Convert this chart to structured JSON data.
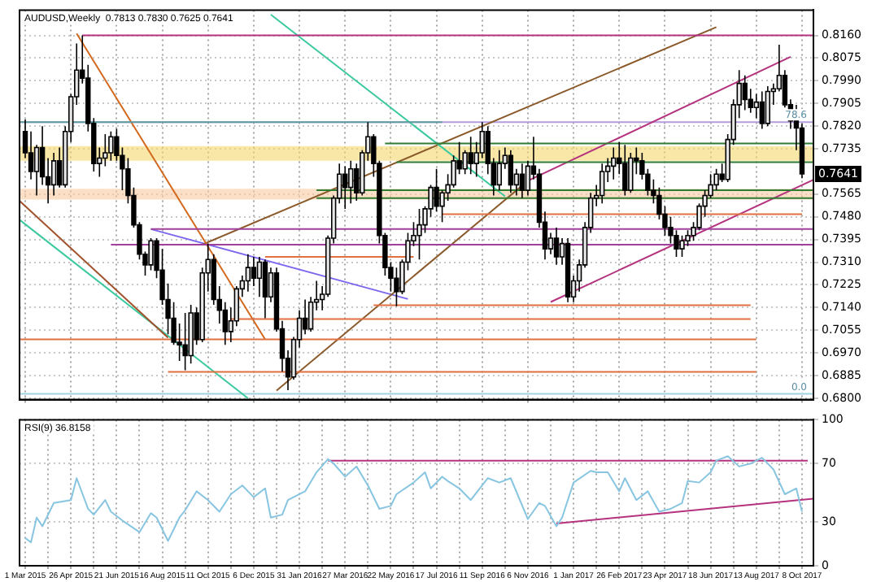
{
  "chart_data": [
    {
      "type": "candlestick",
      "title": "AUDUSD,Weekly  0.7813 0.7830 0.7625 0.7641",
      "grid": true,
      "tick_labels": "y",
      "x": [
        "2015-03-01",
        "2015-03-08",
        "2015-03-15",
        "2015-03-22",
        "2015-03-29",
        "2015-04-05",
        "2015-04-12",
        "2015-04-19",
        "2015-04-26",
        "2015-05-03",
        "2015-05-10",
        "2015-05-17",
        "2015-05-24",
        "2015-05-31",
        "2015-06-07",
        "2015-06-14",
        "2015-06-21",
        "2015-06-28",
        "2015-07-05",
        "2015-07-12",
        "2015-07-19",
        "2015-07-26",
        "2015-08-02",
        "2015-08-09",
        "2015-08-16",
        "2015-08-23",
        "2015-08-30",
        "2015-09-06",
        "2015-09-13",
        "2015-09-20",
        "2015-09-27",
        "2015-10-04",
        "2015-10-11",
        "2015-10-18",
        "2015-10-25",
        "2015-11-01",
        "2015-11-08",
        "2015-11-15",
        "2015-11-22",
        "2015-11-29",
        "2015-12-06",
        "2015-12-13",
        "2015-12-20",
        "2015-12-27",
        "2016-01-03",
        "2016-01-10",
        "2016-01-17",
        "2016-01-24",
        "2016-01-31",
        "2016-02-07",
        "2016-02-14",
        "2016-02-21",
        "2016-02-28",
        "2016-03-06",
        "2016-03-13",
        "2016-03-20",
        "2016-03-27",
        "2016-04-03",
        "2016-04-10",
        "2016-04-17",
        "2016-04-24",
        "2016-05-01",
        "2016-05-08",
        "2016-05-15",
        "2016-05-22",
        "2016-05-29",
        "2016-06-05",
        "2016-06-12",
        "2016-06-19",
        "2016-06-26",
        "2016-07-03",
        "2016-07-10",
        "2016-07-17",
        "2016-07-24",
        "2016-07-31",
        "2016-08-07",
        "2016-08-14",
        "2016-08-21",
        "2016-08-28",
        "2016-09-04",
        "2016-09-11",
        "2016-09-18",
        "2016-09-25",
        "2016-10-02",
        "2016-10-09",
        "2016-10-16",
        "2016-10-23",
        "2016-10-30",
        "2016-11-06",
        "2016-11-13",
        "2016-11-20",
        "2016-11-27",
        "2016-12-04",
        "2016-12-11",
        "2016-12-18",
        "2016-12-25",
        "2017-01-01",
        "2017-01-08",
        "2017-01-15",
        "2017-01-22",
        "2017-01-29",
        "2017-02-05",
        "2017-02-12",
        "2017-02-19",
        "2017-02-26",
        "2017-03-05",
        "2017-03-12",
        "2017-03-19",
        "2017-03-26",
        "2017-04-02",
        "2017-04-09",
        "2017-04-16",
        "2017-04-23",
        "2017-04-30",
        "2017-05-07",
        "2017-05-14",
        "2017-05-21",
        "2017-05-28",
        "2017-06-04",
        "2017-06-11",
        "2017-06-18",
        "2017-06-25",
        "2017-07-02",
        "2017-07-09",
        "2017-07-16",
        "2017-07-23",
        "2017-07-30",
        "2017-08-06",
        "2017-08-13",
        "2017-08-20",
        "2017-08-27",
        "2017-09-03",
        "2017-09-10",
        "2017-09-17",
        "2017-09-24",
        "2017-10-01",
        "2017-10-08"
      ],
      "ohlc": [
        [
          0.78,
          0.7845,
          0.77,
          0.772
        ],
        [
          0.772,
          0.78,
          0.762,
          0.765
        ],
        [
          0.765,
          0.775,
          0.756,
          0.774
        ],
        [
          0.774,
          0.782,
          0.76,
          0.763
        ],
        [
          0.763,
          0.77,
          0.753,
          0.76
        ],
        [
          0.76,
          0.772,
          0.756,
          0.769
        ],
        [
          0.769,
          0.774,
          0.759,
          0.76
        ],
        [
          0.76,
          0.782,
          0.759,
          0.78
        ],
        [
          0.78,
          0.794,
          0.776,
          0.793
        ],
        [
          0.793,
          0.813,
          0.79,
          0.803
        ],
        [
          0.803,
          0.816,
          0.798,
          0.8
        ],
        [
          0.8,
          0.805,
          0.78,
          0.783
        ],
        [
          0.783,
          0.785,
          0.765,
          0.768
        ],
        [
          0.768,
          0.774,
          0.763,
          0.77
        ],
        [
          0.77,
          0.779,
          0.767,
          0.772
        ],
        [
          0.772,
          0.78,
          0.769,
          0.778
        ],
        [
          0.778,
          0.781,
          0.769,
          0.771
        ],
        [
          0.771,
          0.774,
          0.758,
          0.766
        ],
        [
          0.766,
          0.77,
          0.753,
          0.756
        ],
        [
          0.756,
          0.759,
          0.744,
          0.745
        ],
        [
          0.745,
          0.746,
          0.732,
          0.734
        ],
        [
          0.734,
          0.735,
          0.726,
          0.73
        ],
        [
          0.73,
          0.74,
          0.728,
          0.739
        ],
        [
          0.739,
          0.74,
          0.725,
          0.728
        ],
        [
          0.728,
          0.736,
          0.715,
          0.717
        ],
        [
          0.717,
          0.723,
          0.704,
          0.71
        ],
        [
          0.71,
          0.716,
          0.7,
          0.701
        ],
        [
          0.701,
          0.708,
          0.694,
          0.7
        ],
        [
          0.7,
          0.712,
          0.6905,
          0.696
        ],
        [
          0.696,
          0.715,
          0.693,
          0.712
        ],
        [
          0.712,
          0.714,
          0.7,
          0.702
        ],
        [
          0.702,
          0.729,
          0.701,
          0.727
        ],
        [
          0.727,
          0.738,
          0.72,
          0.732
        ],
        [
          0.732,
          0.734,
          0.715,
          0.717
        ],
        [
          0.717,
          0.722,
          0.708,
          0.713
        ],
        [
          0.713,
          0.716,
          0.7,
          0.705
        ],
        [
          0.705,
          0.714,
          0.701,
          0.709
        ],
        [
          0.709,
          0.722,
          0.707,
          0.721
        ],
        [
          0.721,
          0.726,
          0.718,
          0.724
        ],
        [
          0.724,
          0.734,
          0.72,
          0.729
        ],
        [
          0.729,
          0.733,
          0.722,
          0.725
        ],
        [
          0.725,
          0.733,
          0.718,
          0.731
        ],
        [
          0.731,
          0.732,
          0.71,
          0.718
        ],
        [
          0.718,
          0.729,
          0.716,
          0.727
        ],
        [
          0.727,
          0.729,
          0.705,
          0.706
        ],
        [
          0.706,
          0.709,
          0.69,
          0.695
        ],
        [
          0.695,
          0.698,
          0.683,
          0.688
        ],
        [
          0.688,
          0.703,
          0.687,
          0.702
        ],
        [
          0.702,
          0.713,
          0.699,
          0.71
        ],
        [
          0.71,
          0.717,
          0.704,
          0.706
        ],
        [
          0.706,
          0.718,
          0.705,
          0.716
        ],
        [
          0.716,
          0.724,
          0.713,
          0.717
        ],
        [
          0.717,
          0.722,
          0.713,
          0.719
        ],
        [
          0.719,
          0.741,
          0.718,
          0.74
        ],
        [
          0.74,
          0.756,
          0.738,
          0.755
        ],
        [
          0.755,
          0.768,
          0.753,
          0.764
        ],
        [
          0.764,
          0.767,
          0.751,
          0.759
        ],
        [
          0.759,
          0.769,
          0.753,
          0.766
        ],
        [
          0.766,
          0.768,
          0.754,
          0.757
        ],
        [
          0.757,
          0.773,
          0.756,
          0.772
        ],
        [
          0.772,
          0.7835,
          0.769,
          0.778
        ],
        [
          0.778,
          0.779,
          0.763,
          0.768
        ],
        [
          0.768,
          0.769,
          0.738,
          0.741
        ],
        [
          0.741,
          0.742,
          0.726,
          0.729
        ],
        [
          0.729,
          0.731,
          0.72,
          0.725
        ],
        [
          0.725,
          0.729,
          0.7145,
          0.72
        ],
        [
          0.72,
          0.732,
          0.719,
          0.731
        ],
        [
          0.731,
          0.742,
          0.728,
          0.739
        ],
        [
          0.739,
          0.746,
          0.737,
          0.741
        ],
        [
          0.741,
          0.751,
          0.732,
          0.745
        ],
        [
          0.745,
          0.752,
          0.742,
          0.751
        ],
        [
          0.751,
          0.76,
          0.748,
          0.759
        ],
        [
          0.759,
          0.766,
          0.75,
          0.752
        ],
        [
          0.752,
          0.758,
          0.746,
          0.757
        ],
        [
          0.757,
          0.764,
          0.754,
          0.76
        ],
        [
          0.76,
          0.771,
          0.759,
          0.769
        ],
        [
          0.769,
          0.776,
          0.764,
          0.766
        ],
        [
          0.766,
          0.773,
          0.764,
          0.772
        ],
        [
          0.772,
          0.778,
          0.764,
          0.768
        ],
        [
          0.768,
          0.776,
          0.763,
          0.772
        ],
        [
          0.772,
          0.7835,
          0.77,
          0.78
        ],
        [
          0.78,
          0.782,
          0.764,
          0.768
        ],
        [
          0.768,
          0.77,
          0.756,
          0.76
        ],
        [
          0.76,
          0.773,
          0.758,
          0.768
        ],
        [
          0.768,
          0.774,
          0.766,
          0.771
        ],
        [
          0.771,
          0.773,
          0.757,
          0.76
        ],
        [
          0.76,
          0.766,
          0.756,
          0.764
        ],
        [
          0.764,
          0.768,
          0.755,
          0.758
        ],
        [
          0.758,
          0.769,
          0.756,
          0.767
        ],
        [
          0.767,
          0.778,
          0.762,
          0.764
        ],
        [
          0.764,
          0.766,
          0.744,
          0.746
        ],
        [
          0.746,
          0.75,
          0.732,
          0.736
        ],
        [
          0.736,
          0.742,
          0.734,
          0.74
        ],
        [
          0.74,
          0.744,
          0.73,
          0.733
        ],
        [
          0.733,
          0.74,
          0.73,
          0.738
        ],
        [
          0.738,
          0.74,
          0.716,
          0.718
        ],
        [
          0.718,
          0.726,
          0.716,
          0.724
        ],
        [
          0.724,
          0.732,
          0.72,
          0.73
        ],
        [
          0.73,
          0.746,
          0.729,
          0.744
        ],
        [
          0.744,
          0.757,
          0.742,
          0.755
        ],
        [
          0.755,
          0.76,
          0.752,
          0.756
        ],
        [
          0.756,
          0.768,
          0.753,
          0.765
        ],
        [
          0.765,
          0.77,
          0.761,
          0.767
        ],
        [
          0.767,
          0.774,
          0.762,
          0.77
        ],
        [
          0.77,
          0.776,
          0.764,
          0.768
        ],
        [
          0.768,
          0.775,
          0.756,
          0.758
        ],
        [
          0.758,
          0.772,
          0.757,
          0.77
        ],
        [
          0.77,
          0.774,
          0.764,
          0.769
        ],
        [
          0.769,
          0.772,
          0.762,
          0.764
        ],
        [
          0.764,
          0.766,
          0.756,
          0.758
        ],
        [
          0.758,
          0.762,
          0.753,
          0.756
        ],
        [
          0.756,
          0.759,
          0.747,
          0.749
        ],
        [
          0.749,
          0.752,
          0.741,
          0.744
        ],
        [
          0.744,
          0.748,
          0.738,
          0.741
        ],
        [
          0.741,
          0.743,
          0.733,
          0.736
        ],
        [
          0.736,
          0.741,
          0.733,
          0.739
        ],
        [
          0.739,
          0.743,
          0.737,
          0.741
        ],
        [
          0.741,
          0.746,
          0.739,
          0.744
        ],
        [
          0.744,
          0.753,
          0.743,
          0.752
        ],
        [
          0.752,
          0.758,
          0.748,
          0.756
        ],
        [
          0.756,
          0.764,
          0.755,
          0.76
        ],
        [
          0.76,
          0.766,
          0.758,
          0.764
        ],
        [
          0.764,
          0.768,
          0.761,
          0.762
        ],
        [
          0.762,
          0.779,
          0.761,
          0.777
        ],
        [
          0.777,
          0.792,
          0.775,
          0.79
        ],
        [
          0.79,
          0.803,
          0.785,
          0.798
        ],
        [
          0.798,
          0.801,
          0.788,
          0.792
        ],
        [
          0.792,
          0.796,
          0.787,
          0.789
        ],
        [
          0.789,
          0.794,
          0.785,
          0.791
        ],
        [
          0.791,
          0.795,
          0.781,
          0.783
        ],
        [
          0.783,
          0.797,
          0.782,
          0.795
        ],
        [
          0.795,
          0.798,
          0.79,
          0.796
        ],
        [
          0.796,
          0.8125,
          0.795,
          0.801
        ],
        [
          0.801,
          0.803,
          0.789,
          0.79
        ],
        [
          0.79,
          0.792,
          0.781,
          0.784
        ],
        [
          0.784,
          0.79,
          0.773,
          0.7813
        ],
        [
          0.7813,
          0.783,
          0.7625,
          0.7641
        ]
      ],
      "series": [
        {
          "type": "line",
          "color": "#b4327e",
          "x": [
            "2015-05-10",
            "2017-10-22"
          ],
          "values": [
            0.816,
            0.816
          ]
        },
        {
          "type": "line",
          "color": "#5f9ea0",
          "x": [
            "2015-02-22",
            "2016-07-24"
          ],
          "values": [
            0.7835,
            0.7835
          ]
        },
        {
          "type": "line",
          "color": "#2e7d32",
          "x": [
            "2016-05-15",
            "2017-10-22"
          ],
          "values": [
            0.7755,
            0.7755
          ]
        },
        {
          "type": "line",
          "color": "#2e7d32",
          "x": [
            "2016-05-29",
            "2017-10-22"
          ],
          "values": [
            0.7685,
            0.7685
          ]
        },
        {
          "type": "line",
          "color": "#2e7d32",
          "x": [
            "2016-02-21",
            "2017-10-22"
          ],
          "values": [
            0.758,
            0.758
          ]
        },
        {
          "type": "line",
          "color": "#2e7d32",
          "x": [
            "2016-02-21",
            "2017-10-22"
          ],
          "values": [
            0.755,
            0.755
          ]
        },
        {
          "type": "line",
          "color": "#e07040",
          "x": [
            "2016-07-24",
            "2017-10-08"
          ],
          "values": [
            0.749,
            0.749
          ]
        },
        {
          "type": "line",
          "color": "#e07040",
          "x": [
            "2015-12-20",
            "2016-06-19"
          ],
          "values": [
            0.733,
            0.733
          ]
        },
        {
          "type": "line",
          "color": "#a0409a",
          "x": [
            "2015-08-02",
            "2017-10-22"
          ],
          "values": [
            0.7434,
            0.7434
          ]
        },
        {
          "type": "line",
          "color": "#a0409a",
          "x": [
            "2015-06-14",
            "2017-10-22"
          ],
          "values": [
            0.7376,
            0.7376
          ]
        },
        {
          "type": "line",
          "color": "#e07040",
          "x": [
            "2016-05-01",
            "2017-08-06"
          ],
          "values": [
            0.7149,
            0.7149
          ]
        },
        {
          "type": "line",
          "color": "#e07040",
          "x": [
            "2015-11-08",
            "2017-08-06"
          ],
          "values": [
            0.7097,
            0.7097
          ]
        },
        {
          "type": "line",
          "color": "#e07040",
          "x": [
            "2015-02-22",
            "2017-08-13"
          ],
          "values": [
            0.7021,
            0.7021
          ]
        },
        {
          "type": "line",
          "color": "#e07040",
          "x": [
            "2015-08-23",
            "2017-08-13"
          ],
          "values": [
            0.6899,
            0.6899
          ]
        },
        {
          "type": "line",
          "color": "#d2691e",
          "x": [
            "2015-05-03",
            "2015-12-20"
          ],
          "values": [
            0.8167,
            0.7021
          ]
        },
        {
          "type": "line",
          "color": "#a0522d",
          "x": [
            "2015-02-22",
            "2015-08-23"
          ],
          "values": [
            0.754,
            0.7027
          ]
        },
        {
          "type": "line",
          "color": "#3cc9a0",
          "x": [
            "2015-02-22",
            "2015-11-29"
          ],
          "values": [
            0.7469,
            0.68
          ]
        },
        {
          "type": "line",
          "color": "#3cc9a0",
          "x": [
            "2015-12-27",
            "2016-10-09"
          ],
          "values": [
            0.8238,
            0.7557
          ]
        },
        {
          "type": "line",
          "color": "#8b5a2b",
          "x": [
            "2015-10-04",
            "2017-06-25"
          ],
          "values": [
            0.7376,
            0.8191
          ]
        },
        {
          "type": "line",
          "color": "#8b5a2b",
          "x": [
            "2016-01-03",
            "2016-10-30"
          ],
          "values": [
            0.6829,
            0.7597
          ]
        },
        {
          "type": "line",
          "color": "#7b68ee",
          "x": [
            "2015-08-02",
            "2016-06-12"
          ],
          "values": [
            0.7434,
            0.7172
          ]
        },
        {
          "type": "line",
          "color": "#b4327e",
          "x": [
            "2016-11-06",
            "2017-09-24"
          ],
          "values": [
            0.7615,
            0.808
          ]
        },
        {
          "type": "line",
          "color": "#b4327e",
          "x": [
            "2016-12-04",
            "2017-10-22"
          ],
          "values": [
            0.7161,
            0.7619
          ]
        }
      ],
      "bands": [
        {
          "axis": "y",
          "from": 0.769,
          "to": 0.7745,
          "color": "#f5d76e"
        },
        {
          "axis": "y",
          "from": 0.7545,
          "to": 0.7585,
          "color": "#f8c9a0"
        }
      ],
      "ref_lines": [
        {
          "axis": "y",
          "value": 0.7835,
          "color": "#b39ddb"
        },
        {
          "axis": "y",
          "value": 0.6817,
          "color": "#9fd3e0"
        }
      ],
      "annotations": [
        {
          "text": "0.7641",
          "y": 0.7641
        },
        {
          "text": "78.6",
          "y": 0.7835
        },
        {
          "text": "0.0",
          "y": 0.6817
        }
      ],
      "xlim": [
        "2015-02-22",
        "2017-10-22"
      ],
      "ylim": [
        0.6795,
        0.8255
      ],
      "yticks": [
        {
          "value": 0.68,
          "label": "0.6800"
        },
        {
          "value": 0.6885,
          "label": "0.6885"
        },
        {
          "value": 0.697,
          "label": "0.6970"
        },
        {
          "value": 0.7055,
          "label": "0.7055"
        },
        {
          "value": 0.714,
          "label": "0.7140"
        },
        {
          "value": 0.7225,
          "label": "0.7225"
        },
        {
          "value": 0.731,
          "label": "0.7310"
        },
        {
          "value": 0.7395,
          "label": "0.7395"
        },
        {
          "value": 0.748,
          "label": "0.7480"
        },
        {
          "value": 0.7565,
          "label": "0.7565"
        },
        {
          "value": 0.7735,
          "label": "0.7735"
        },
        {
          "value": 0.782,
          "label": "0.7820"
        },
        {
          "value": 0.7905,
          "label": "0.7905"
        },
        {
          "value": 0.799,
          "label": "0.7990"
        },
        {
          "value": 0.8075,
          "label": "0.8075"
        },
        {
          "value": 0.816,
          "label": "0.8160"
        }
      ],
      "xticks": [
        {
          "value": "2015-03-01",
          "label": null
        },
        {
          "value": "2015-04-26",
          "label": null
        },
        {
          "value": "2015-06-21",
          "label": null
        },
        {
          "value": "2015-08-16",
          "label": null
        },
        {
          "value": "2015-10-11",
          "label": null
        },
        {
          "value": "2015-12-06",
          "label": null
        },
        {
          "value": "2016-01-31",
          "label": null
        },
        {
          "value": "2016-03-27",
          "label": null
        },
        {
          "value": "2016-05-22",
          "label": null
        },
        {
          "value": "2016-07-17",
          "label": null
        },
        {
          "value": "2016-09-11",
          "label": null
        },
        {
          "value": "2016-11-06",
          "label": null
        },
        {
          "value": "2017-01-01",
          "label": null
        },
        {
          "value": "2017-02-26",
          "label": null
        },
        {
          "value": "2017-04-23",
          "label": null
        },
        {
          "value": "2017-06-18",
          "label": null
        },
        {
          "value": "2017-08-13",
          "label": null
        },
        {
          "value": "2017-10-08",
          "label": null
        }
      ]
    },
    {
      "type": "line",
      "title": "RSI(9) 36.8158",
      "grid": true,
      "series": [
        {
          "color": "#87c5e0",
          "x": [
            "2015-03-01",
            "2015-03-08",
            "2015-03-15",
            "2015-03-22",
            "2015-04-05",
            "2015-04-26",
            "2015-05-03",
            "2015-05-17",
            "2015-05-24",
            "2015-06-07",
            "2015-06-14",
            "2015-06-28",
            "2015-07-19",
            "2015-08-02",
            "2015-08-09",
            "2015-08-23",
            "2015-09-06",
            "2015-09-13",
            "2015-09-27",
            "2015-10-11",
            "2015-10-25",
            "2015-11-08",
            "2015-11-22",
            "2015-12-06",
            "2015-12-20",
            "2015-12-27",
            "2016-01-10",
            "2016-01-17",
            "2016-02-07",
            "2016-02-21",
            "2016-03-06",
            "2016-03-13",
            "2016-03-27",
            "2016-04-10",
            "2016-04-24",
            "2016-05-08",
            "2016-05-22",
            "2016-05-29",
            "2016-06-19",
            "2016-07-03",
            "2016-07-10",
            "2016-07-24",
            "2016-07-31",
            "2016-08-14",
            "2016-08-28",
            "2016-09-18",
            "2016-10-02",
            "2016-10-16",
            "2016-11-06",
            "2016-11-20",
            "2016-11-27",
            "2016-12-11",
            "2016-12-18",
            "2017-01-01",
            "2017-01-22",
            "2017-01-29",
            "2017-02-12",
            "2017-02-26",
            "2017-03-05",
            "2017-03-19",
            "2017-04-02",
            "2017-04-16",
            "2017-04-30",
            "2017-05-14",
            "2017-05-21",
            "2017-06-04",
            "2017-06-18",
            "2017-06-25",
            "2017-07-09",
            "2017-07-23",
            "2017-08-06",
            "2017-08-20",
            "2017-09-03",
            "2017-09-17",
            "2017-10-01",
            "2017-10-08"
          ],
          "values": [
            19,
            16,
            33,
            27,
            43,
            45,
            60,
            39,
            35,
            45,
            37,
            31,
            23,
            36,
            33,
            17,
            33,
            38,
            51,
            45,
            37,
            49,
            55,
            47,
            53,
            33,
            35,
            45,
            51,
            64,
            73,
            70,
            61,
            68,
            55,
            39,
            41,
            49,
            57,
            64,
            53,
            61,
            58,
            53,
            45,
            60,
            57,
            60,
            32,
            43,
            41,
            27,
            33,
            57,
            65,
            64,
            64,
            51,
            60,
            45,
            51,
            37,
            39,
            43,
            58,
            57,
            64,
            72,
            75,
            68,
            70,
            74,
            66,
            49,
            53,
            37
          ]
        },
        {
          "color": "#b4327e",
          "x": [
            "2016-03-06",
            "2017-10-15"
          ],
          "values": [
            72,
            72
          ]
        },
        {
          "color": "#b4327e",
          "x": [
            "2016-12-11",
            "2017-10-22"
          ],
          "values": [
            29,
            46
          ]
        }
      ],
      "xlim": [
        "2015-02-22",
        "2017-10-22"
      ],
      "ylim": [
        0,
        100
      ],
      "yticks": [
        0,
        30,
        70,
        100
      ],
      "xticks": [
        {
          "value": "2015-03-01",
          "label": "1 Mar 2015"
        },
        {
          "value": "2015-03-29",
          "label": null
        },
        {
          "value": "2015-04-26",
          "label": "26 Apr 2015"
        },
        {
          "value": "2015-05-24",
          "label": null
        },
        {
          "value": "2015-06-21",
          "label": "21 Jun 2015"
        },
        {
          "value": "2015-07-19",
          "label": null
        },
        {
          "value": "2015-08-16",
          "label": "16 Aug 2015"
        },
        {
          "value": "2015-09-13",
          "label": null
        },
        {
          "value": "2015-10-11",
          "label": "11 Oct 2015"
        },
        {
          "value": "2015-11-08",
          "label": null
        },
        {
          "value": "2015-12-06",
          "label": "6 Dec 2015"
        },
        {
          "value": "2016-01-03",
          "label": null
        },
        {
          "value": "2016-01-31",
          "label": "31 Jan 2016"
        },
        {
          "value": "2016-02-28",
          "label": null
        },
        {
          "value": "2016-03-27",
          "label": "27 Mar 2016"
        },
        {
          "value": "2016-04-24",
          "label": null
        },
        {
          "value": "2016-05-22",
          "label": "22 May 2016"
        },
        {
          "value": "2016-06-19",
          "label": null
        },
        {
          "value": "2016-07-17",
          "label": "17 Jul 2016"
        },
        {
          "value": "2016-08-14",
          "label": null
        },
        {
          "value": "2016-09-11",
          "label": "11 Sep 2016"
        },
        {
          "value": "2016-10-09",
          "label": null
        },
        {
          "value": "2016-11-06",
          "label": "6 Nov 2016"
        },
        {
          "value": "2016-12-04",
          "label": null
        },
        {
          "value": "2017-01-01",
          "label": "1 Jan 2017"
        },
        {
          "value": "2017-01-29",
          "label": null
        },
        {
          "value": "2017-02-26",
          "label": "26 Feb 2017"
        },
        {
          "value": "2017-03-26",
          "label": null
        },
        {
          "value": "2017-04-23",
          "label": "23 Apr 2017"
        },
        {
          "value": "2017-05-21",
          "label": null
        },
        {
          "value": "2017-06-18",
          "label": "18 Jun 2017"
        },
        {
          "value": "2017-07-16",
          "label": null
        },
        {
          "value": "2017-08-13",
          "label": "13 Aug 2017"
        },
        {
          "value": "2017-09-10",
          "label": null
        },
        {
          "value": "2017-10-08",
          "label": "8 Oct 2017"
        }
      ]
    }
  ]
}
